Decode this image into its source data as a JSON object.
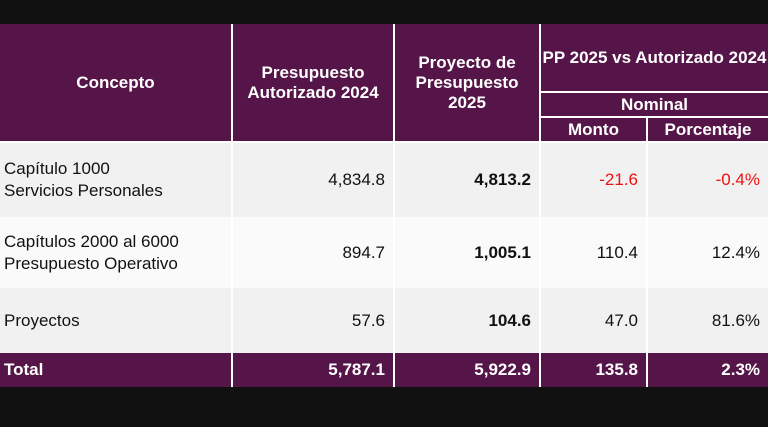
{
  "headers": {
    "concepto": "Concepto",
    "autorizado": "Presupuesto Autorizado 2024",
    "proyecto": "Proyecto de Presupuesto 2025",
    "comparacion": "PP 2025 vs Autorizado 2024",
    "nominal": "Nominal",
    "monto": "Monto",
    "porcentaje": "Porcentaje"
  },
  "rows": [
    {
      "concepto_1": "Capítulo 1000",
      "concepto_2": "Servicios Personales",
      "autorizado": "4,834.8",
      "proyecto": "4,813.2",
      "monto": "-21.6",
      "porcentaje": "-0.4%"
    },
    {
      "concepto_1": "Capítulos 2000 al 6000",
      "concepto_2": "Presupuesto Operativo",
      "autorizado": "894.7",
      "proyecto": "1,005.1",
      "monto": "110.4",
      "porcentaje": "12.4%"
    },
    {
      "concepto_1": "Proyectos",
      "autorizado": "57.6",
      "proyecto": "104.6",
      "monto": "47.0",
      "porcentaje": "81.6%"
    }
  ],
  "total": {
    "label": "Total",
    "autorizado": "5,787.1",
    "proyecto": "5,922.9",
    "monto": "135.8",
    "porcentaje": "2.3%"
  },
  "colors": {
    "header": "#561548",
    "negative": "#e11111"
  }
}
